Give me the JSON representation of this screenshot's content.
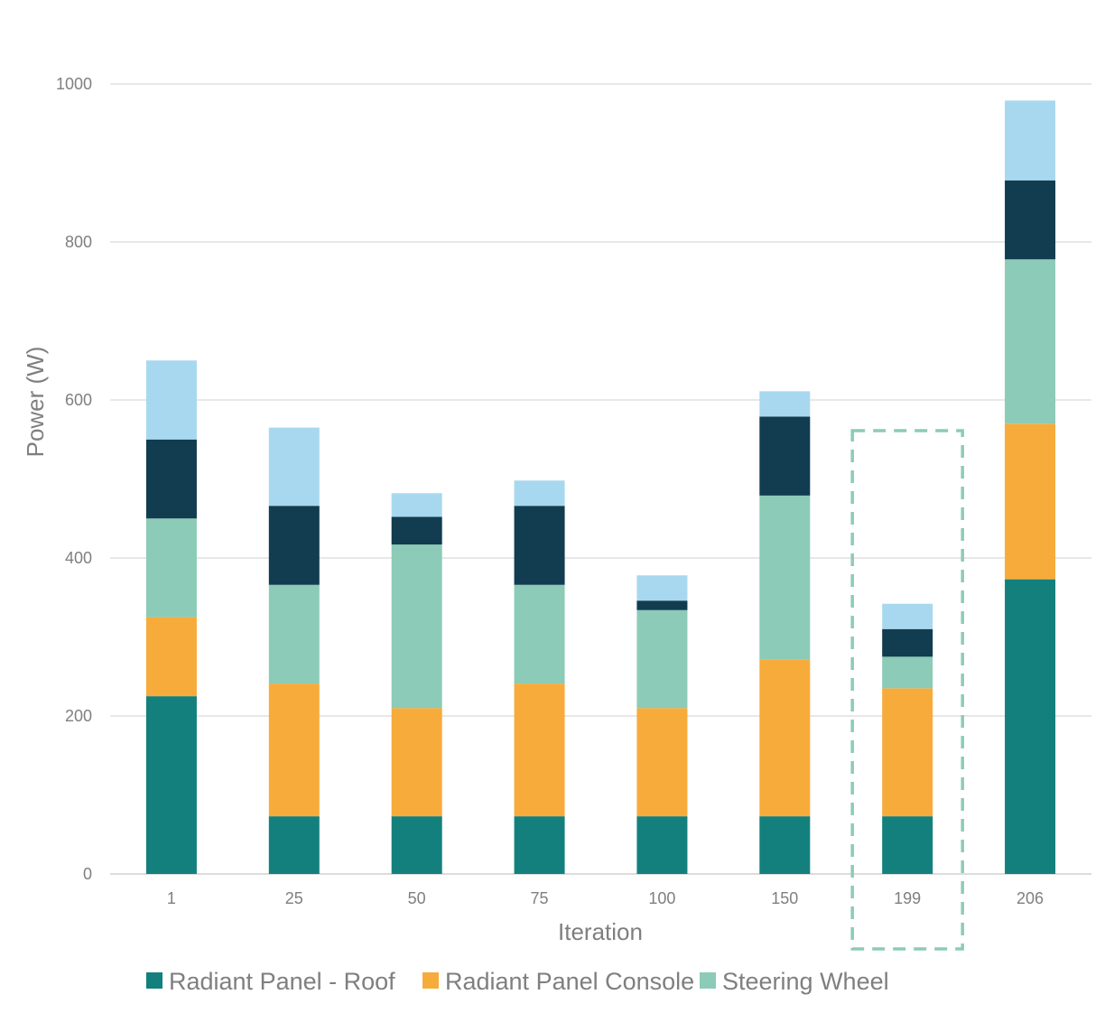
{
  "chart_data": {
    "type": "bar",
    "stacked": true,
    "title": "",
    "xlabel": "Iteration",
    "ylabel": "Power (W)",
    "ylim": [
      0,
      1000
    ],
    "yticks": [
      0,
      200,
      400,
      600,
      800,
      1000
    ],
    "grid": true,
    "legend_position": "bottom",
    "categories": [
      "1",
      "25",
      "50",
      "75",
      "100",
      "150",
      "199",
      "206"
    ],
    "highlighted_category": "199",
    "highlight_color": "#8ccbb7",
    "series": [
      {
        "name": "Radiant Panel - Roof",
        "color": "#13807e",
        "values": [
          225,
          73,
          73,
          73,
          73,
          73,
          73,
          373
        ]
      },
      {
        "name": "Radiant Panel Console",
        "color": "#f7ab3b",
        "values": [
          100,
          168,
          137,
          168,
          137,
          198,
          162,
          197
        ]
      },
      {
        "name": "Steering Wheel",
        "color": "#8ccbb7",
        "values": [
          125,
          125,
          207,
          125,
          124,
          208,
          40,
          208
        ]
      },
      {
        "name": "",
        "color": "#123c4f",
        "values": [
          100,
          100,
          35,
          100,
          12,
          100,
          35,
          100
        ]
      },
      {
        "name": "",
        "color": "#a8d8ef",
        "values": [
          100,
          99,
          30,
          32,
          32,
          32,
          32,
          101
        ]
      }
    ]
  }
}
